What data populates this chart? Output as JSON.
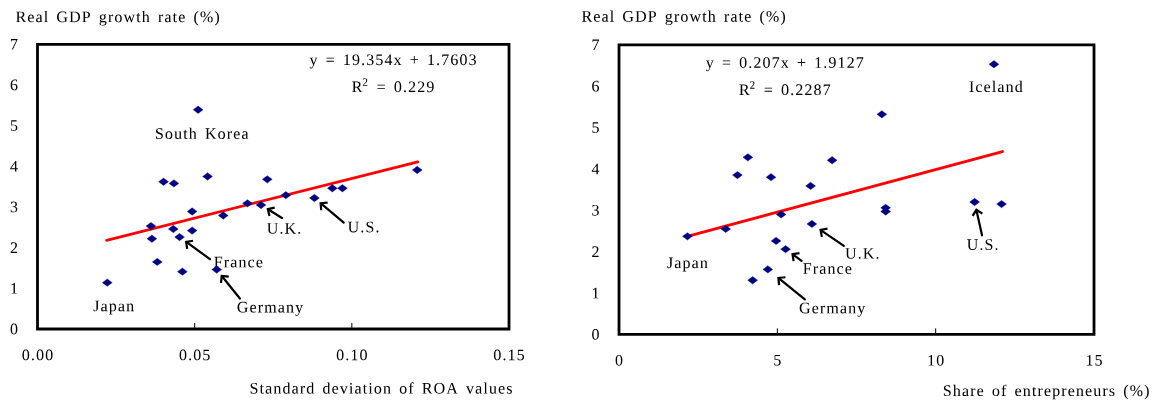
{
  "chart_data": [
    {
      "type": "scatter",
      "xlabel": "Standard deviation of ROA values",
      "ylabel": "Real GDP growth rate (%)",
      "xlim": [
        0,
        0.15
      ],
      "xticks": [
        {
          "value": 0,
          "label": "0.00"
        },
        {
          "value": 0.05,
          "label": "0.05"
        },
        {
          "value": 0.1,
          "label": "0.10"
        },
        {
          "value": 0.15,
          "label": "0.15"
        }
      ],
      "ylim": [
        0,
        7
      ],
      "yticks": [
        0,
        1,
        2,
        3,
        4,
        5,
        6,
        7
      ],
      "series": [
        {
          "color": "#000080",
          "marker": "diamond",
          "x": [
            0.0222,
            0.0361,
            0.0364,
            0.0381,
            0.0401,
            0.0434,
            0.0432,
            0.0452,
            0.0461,
            0.0492,
            0.0492,
            0.0511,
            0.0541,
            0.057,
            0.0591,
            0.0668,
            0.0711,
            0.0731,
            0.079,
            0.0881,
            0.0938,
            0.097,
            0.1208
          ],
          "values": [
            1.14,
            2.53,
            2.22,
            1.65,
            3.62,
            3.58,
            2.46,
            2.26,
            1.41,
            2.89,
            2.42,
            5.39,
            3.75,
            1.46,
            2.79,
            3.09,
            3.05,
            3.68,
            3.29,
            3.22,
            3.46,
            3.46,
            3.91
          ]
        },
        {
          "type": "line",
          "color": "#ff0000",
          "marker": "none",
          "x": [
            0.022,
            0.121
          ],
          "values": [
            2.18,
            4.11
          ]
        }
      ],
      "annotations": [
        "y = 19.354x + 1.7603",
        "R$^{2}$ = 0.229",
        {
          "text": "South Korea",
          "x": 0.0511,
          "y": 5.39
        },
        {
          "text": "U.K.",
          "x": 0.0711,
          "y": 3.05
        },
        {
          "text": "U.S.",
          "x": 0.0881,
          "y": 3.22
        },
        {
          "text": "France",
          "x": 0.0452,
          "y": 2.26
        },
        {
          "text": "Japan",
          "x": 0.0222,
          "y": 1.14
        },
        {
          "text": "Germany",
          "x": 0.057,
          "y": 1.46
        }
      ]
    },
    {
      "type": "scatter",
      "xlabel": "Share of entrepreneurs (%)",
      "ylabel": "Real GDP growth rate (%)",
      "xlim": [
        0,
        15
      ],
      "xticks": [
        0,
        5,
        10,
        15
      ],
      "ylim": [
        0,
        7
      ],
      "yticks": [
        0,
        1,
        2,
        3,
        4,
        5,
        6,
        7
      ],
      "series": [
        {
          "color": "#000080",
          "marker": "diamond",
          "x": [
            2.16,
            3.37,
            3.74,
            4.07,
            4.22,
            4.7,
            4.8,
            4.96,
            5.12,
            5.26,
            6.05,
            6.09,
            6.73,
            8.3,
            8.42,
            8.42,
            11.23,
            11.84,
            12.08
          ],
          "values": [
            2.37,
            2.55,
            3.85,
            4.28,
            1.31,
            1.57,
            3.8,
            2.26,
            2.9,
            2.06,
            3.59,
            2.67,
            4.21,
            5.32,
            3.06,
            2.97,
            3.2,
            6.53,
            3.15
          ]
        },
        {
          "type": "line",
          "color": "#ff0000",
          "marker": "none",
          "x": [
            2.16,
            12.11
          ],
          "values": [
            2.37,
            4.42
          ]
        }
      ],
      "annotations": [
        "y = 0.207x + 1.9127",
        "R$^{2}$ = 0.2287",
        {
          "text": "Iceland",
          "x": 11.84,
          "y": 6.53
        },
        {
          "text": "U.K.",
          "x": 6.09,
          "y": 2.67
        },
        {
          "text": "U.S.",
          "x": 11.23,
          "y": 3.2
        },
        {
          "text": "Japan",
          "x": 2.16,
          "y": 2.37
        },
        {
          "text": "France",
          "x": 5.26,
          "y": 2.06
        },
        {
          "text": "Germany",
          "x": 4.7,
          "y": 1.57
        }
      ]
    }
  ]
}
